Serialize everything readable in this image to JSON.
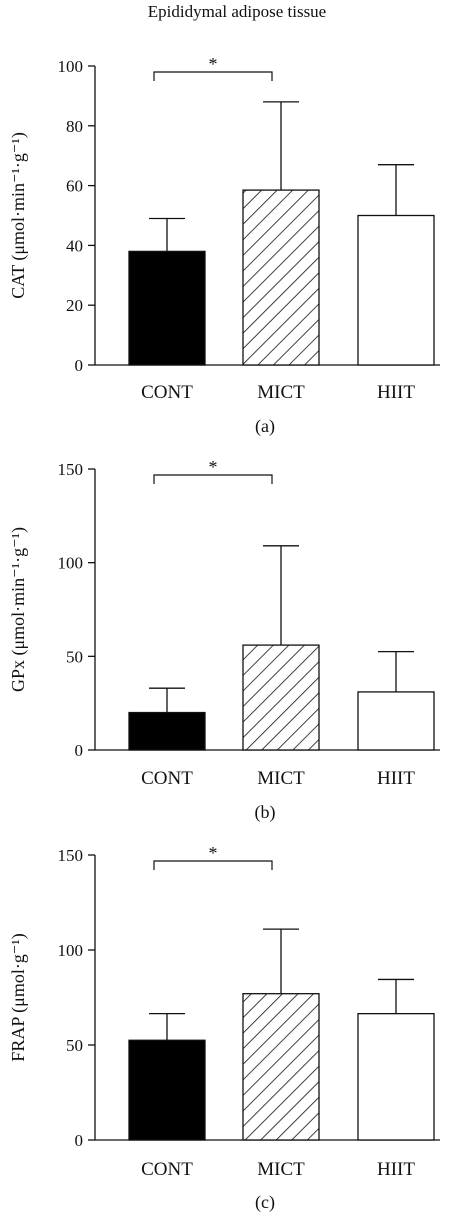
{
  "figure_title": "Epididymal adipose tissue",
  "chart_data": [
    {
      "type": "bar",
      "panel_label": "(a)",
      "ylabel": "CAT (μmol·min⁻¹·g⁻¹)",
      "ylim": [
        0,
        100
      ],
      "yticks": [
        0,
        20,
        40,
        60,
        80,
        100
      ],
      "categories": [
        "CONT",
        "MICT",
        "HIIT"
      ],
      "values": [
        38,
        58.5,
        50
      ],
      "errors": [
        11,
        29.5,
        17
      ],
      "fills": [
        "solid-black",
        "diagonal-hatch",
        "white"
      ],
      "significance": {
        "from": 0,
        "to": 1,
        "label": "*"
      }
    },
    {
      "type": "bar",
      "panel_label": "(b)",
      "ylabel": "GPx (μmol·min⁻¹·g⁻¹)",
      "ylim": [
        0,
        150
      ],
      "yticks": [
        0,
        50,
        100,
        150
      ],
      "categories": [
        "CONT",
        "MICT",
        "HIIT"
      ],
      "values": [
        20,
        56,
        31
      ],
      "errors": [
        13,
        53,
        21.5
      ],
      "fills": [
        "solid-black",
        "diagonal-hatch",
        "white"
      ],
      "significance": {
        "from": 0,
        "to": 1,
        "label": "*"
      }
    },
    {
      "type": "bar",
      "panel_label": "(c)",
      "ylabel": "FRAP (μmol·g⁻¹)",
      "ylim": [
        0,
        150
      ],
      "yticks": [
        0,
        50,
        100,
        150
      ],
      "categories": [
        "CONT",
        "MICT",
        "HIIT"
      ],
      "values": [
        52.5,
        77,
        66.5
      ],
      "errors": [
        14,
        34,
        18
      ],
      "fills": [
        "solid-black",
        "diagonal-hatch",
        "white"
      ],
      "significance": {
        "from": 0,
        "to": 1,
        "label": "*"
      }
    }
  ]
}
